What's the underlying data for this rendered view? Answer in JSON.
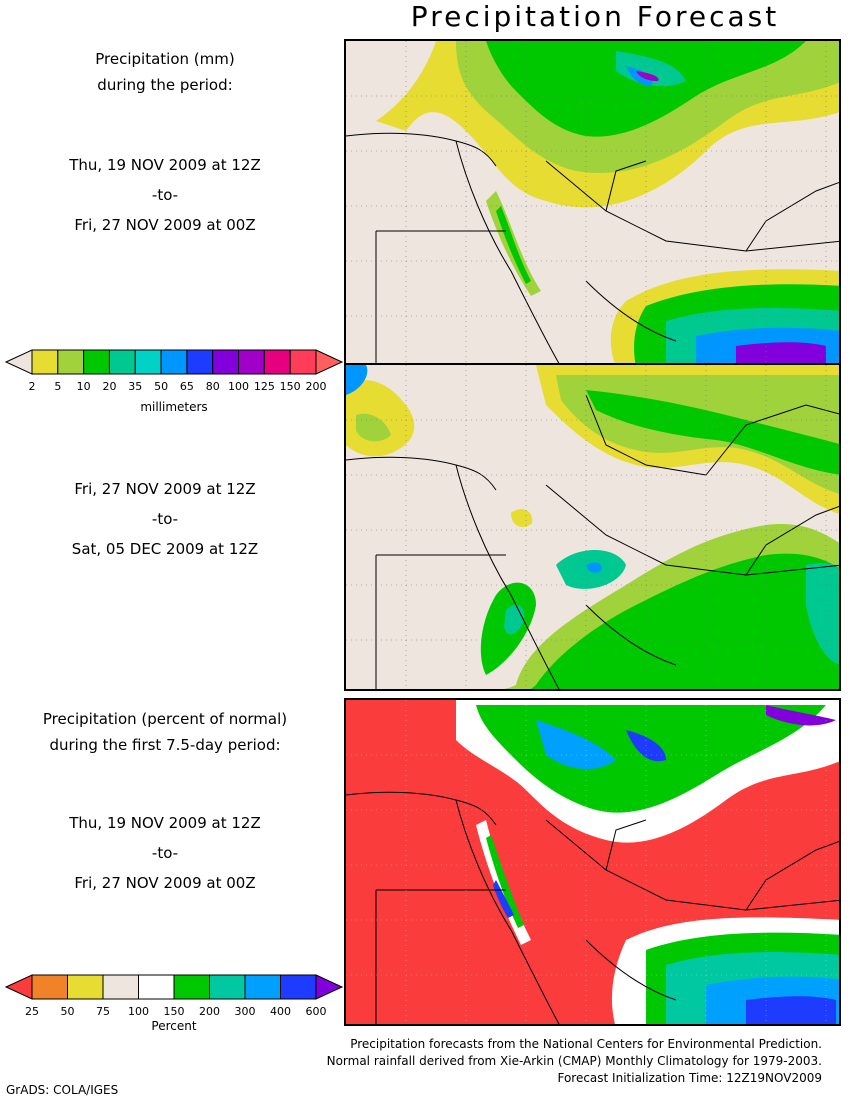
{
  "title": "Precipitation Forecast",
  "panel1": {
    "heading_line1": "Precipitation (mm)",
    "heading_line2": "during the period:",
    "start": "Thu, 19 NOV 2009 at 12Z",
    "sep": "-to-",
    "end": "Fri, 27 NOV 2009 at 00Z"
  },
  "panel2": {
    "start": "Fri, 27 NOV 2009 at 12Z",
    "sep": "-to-",
    "end": "Sat, 05 DEC 2009 at 12Z"
  },
  "panel3": {
    "heading_line1": "Precipitation (percent of normal)",
    "heading_line2": "during the first 7.5-day period:",
    "start": "Thu, 19 NOV 2009 at 12Z",
    "sep": "-to-",
    "end": "Fri, 27 NOV 2009 at 00Z"
  },
  "legend_mm": {
    "unit": "millimeters",
    "ticks": [
      "2",
      "5",
      "10",
      "20",
      "35",
      "50",
      "65",
      "80",
      "100",
      "125",
      "150",
      "200"
    ],
    "colors": [
      "#ede5de",
      "#e6dc32",
      "#a0d23c",
      "#00c800",
      "#00c891",
      "#00d2c8",
      "#0096ff",
      "#1e3cff",
      "#8200dc",
      "#a000c8",
      "#e6007f",
      "#ff3c5a",
      "#ff5f5f"
    ]
  },
  "legend_pct": {
    "unit": "Percent",
    "ticks": [
      "25",
      "50",
      "75",
      "100",
      "150",
      "200",
      "300",
      "400",
      "600"
    ],
    "colors": [
      "#fa3c3c",
      "#f08228",
      "#e6dc32",
      "#ede5de",
      "#ffffff",
      "#00c800",
      "#00c8a0",
      "#00a0ff",
      "#1e3cff",
      "#8200dc"
    ]
  },
  "credits": {
    "line1": "Precipitation forecasts from the National Centers for Environmental Prediction.",
    "line2": "Normal rainfall derived from Xie-Arkin (CMAP) Monthly Climatology for 1979-2003.",
    "line3": "Forecast Initialization Time: 12Z19NOV2009"
  },
  "software": "GrADS: COLA/IGES"
}
